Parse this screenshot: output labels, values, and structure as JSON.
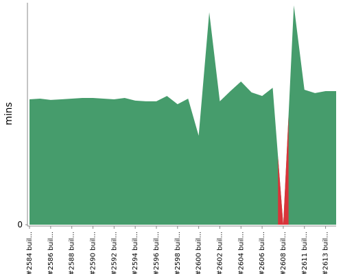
{
  "chart_data": {
    "type": "area",
    "ylabel": "mins",
    "categories": [
      "#2584 buil...",
      null,
      "#2586 buil...",
      null,
      "#2588 buil...",
      null,
      "#2590 buil...",
      null,
      "#2592 buil...",
      null,
      "#2594 buil...",
      null,
      "#2596 buil...",
      null,
      "#2598 buil...",
      null,
      "#2600 buil...",
      null,
      "#2602 buil...",
      null,
      "#2604 buil...",
      null,
      "#2606 buil...",
      null,
      "#2608 buil...",
      null,
      "#2611 buil...",
      null,
      "#2613 buil...",
      null
    ],
    "values": [
      56.5,
      56.8,
      56.2,
      56.5,
      56.8,
      57.1,
      57.1,
      56.8,
      56.5,
      57.1,
      55.9,
      55.6,
      55.6,
      58.0,
      54.3,
      56.8,
      40.1,
      95.7,
      55.6,
      60.2,
      64.5,
      59.6,
      58.0,
      61.7,
      0,
      98.8,
      60.8,
      59.3,
      60.2,
      60.2
    ],
    "color": "#469c6c",
    "point_colors": [
      "#469c6c",
      "#469c6c",
      "#469c6c",
      "#469c6c",
      "#469c6c",
      "#469c6c",
      "#469c6c",
      "#469c6c",
      "#469c6c",
      "#469c6c",
      "#469c6c",
      "#469c6c",
      "#469c6c",
      "#469c6c",
      "#469c6c",
      "#469c6c",
      "#469c6c",
      "#469c6c",
      "#469c6c",
      "#469c6c",
      "#469c6c",
      "#469c6c",
      "#469c6c",
      "#469c6c",
      "#d9343a",
      "#469c6c",
      "#469c6c",
      "#469c6c",
      "#469c6c",
      "#469c6c"
    ],
    "ylim": [
      0,
      100
    ],
    "yticks": [
      0
    ]
  }
}
